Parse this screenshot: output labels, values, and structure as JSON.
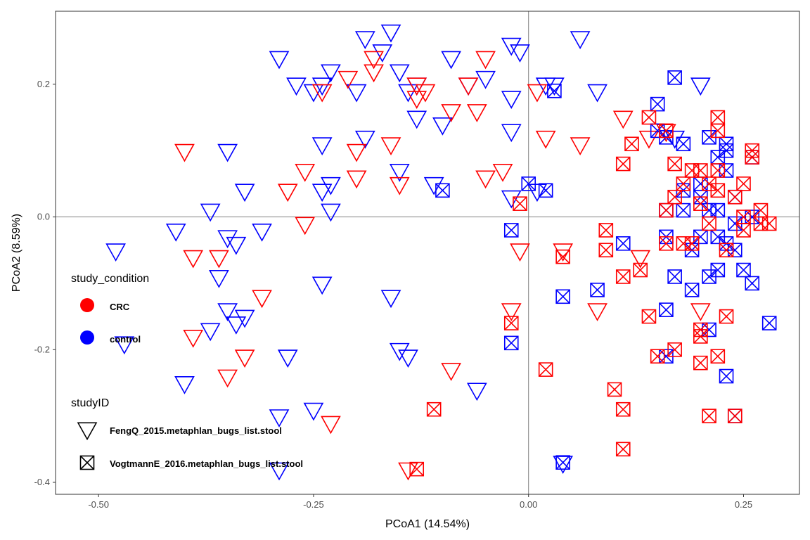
{
  "chart_data": {
    "type": "scatter",
    "xlabel": "PCoA1 (14.54%)",
    "ylabel": "PCoA2 (8.59%)",
    "xlim": [
      -0.55,
      0.315
    ],
    "ylim": [
      -0.418,
      0.31
    ],
    "x_ticks": [
      -0.5,
      -0.25,
      0.0,
      0.25
    ],
    "x_tick_labels": [
      "-0.50",
      "-0.25",
      "0.00",
      "0.25"
    ],
    "y_ticks": [
      -0.4,
      -0.2,
      0.0,
      0.2
    ],
    "y_tick_labels": [
      "-0.4",
      "-0.2",
      "0.0",
      "0.2"
    ],
    "reference_lines": {
      "x": 0,
      "y": 0
    },
    "colors": {
      "CRC": "#ff0000",
      "control": "#0000ff"
    },
    "legend": {
      "placement": "left-inside",
      "color_title": "study_condition",
      "color_entries": [
        "CRC",
        "control"
      ],
      "shape_title": "studyID",
      "shape_entries": [
        {
          "label": "FengQ_2015.metaphlan_bugs_list.stool",
          "shape": "triangle-down"
        },
        {
          "label": "VogtmannE_2016.metaphlan_bugs_list.stool",
          "shape": "square-x"
        }
      ]
    },
    "series": [
      {
        "condition": "control",
        "study": "FengQ_2015.metaphlan_bugs_list.stool",
        "points": [
          [
            -0.48,
            -0.05
          ],
          [
            -0.41,
            -0.02
          ],
          [
            -0.4,
            -0.25
          ],
          [
            -0.37,
            0.01
          ],
          [
            -0.36,
            -0.09
          ],
          [
            -0.37,
            -0.17
          ],
          [
            -0.35,
            -0.14
          ],
          [
            -0.35,
            0.1
          ],
          [
            -0.35,
            -0.03
          ],
          [
            -0.34,
            -0.04
          ],
          [
            -0.34,
            -0.16
          ],
          [
            -0.33,
            0.04
          ],
          [
            -0.33,
            -0.15
          ],
          [
            -0.31,
            -0.02
          ],
          [
            -0.29,
            0.24
          ],
          [
            -0.29,
            -0.3
          ],
          [
            -0.29,
            -0.38
          ],
          [
            -0.27,
            0.2
          ],
          [
            -0.28,
            -0.21
          ],
          [
            -0.25,
            0.19
          ],
          [
            -0.25,
            -0.29
          ],
          [
            -0.24,
            0.11
          ],
          [
            -0.24,
            0.04
          ],
          [
            -0.24,
            -0.1
          ],
          [
            -0.23,
            0.22
          ],
          [
            -0.23,
            0.05
          ],
          [
            -0.23,
            0.01
          ],
          [
            -0.24,
            0.2
          ],
          [
            -0.2,
            0.19
          ],
          [
            -0.19,
            0.27
          ],
          [
            -0.19,
            0.12
          ],
          [
            -0.17,
            0.25
          ],
          [
            -0.16,
            0.28
          ],
          [
            -0.15,
            0.22
          ],
          [
            -0.16,
            -0.12
          ],
          [
            -0.15,
            0.07
          ],
          [
            -0.15,
            -0.2
          ],
          [
            -0.14,
            -0.21
          ],
          [
            -0.14,
            0.19
          ],
          [
            -0.13,
            0.15
          ],
          [
            -0.13,
            0.2
          ],
          [
            -0.11,
            0.05
          ],
          [
            -0.1,
            0.14
          ],
          [
            -0.09,
            0.24
          ],
          [
            -0.07,
            0.2
          ],
          [
            -0.06,
            -0.26
          ],
          [
            -0.05,
            0.21
          ],
          [
            -0.02,
            0.26
          ],
          [
            -0.02,
            0.13
          ],
          [
            -0.01,
            0.25
          ],
          [
            -0.02,
            0.18
          ],
          [
            -0.02,
            0.03
          ],
          [
            0.06,
            0.27
          ],
          [
            0.08,
            0.19
          ],
          [
            0.01,
            0.04
          ],
          [
            0.02,
            0.2
          ],
          [
            0.03,
            0.2
          ],
          [
            -0.47,
            -0.19
          ],
          [
            0.04,
            -0.37
          ],
          [
            0.17,
            0.12
          ],
          [
            0.2,
            0.2
          ]
        ]
      },
      {
        "condition": "CRC",
        "study": "FengQ_2015.metaphlan_bugs_list.stool",
        "points": [
          [
            -0.4,
            0.1
          ],
          [
            -0.39,
            -0.06
          ],
          [
            -0.36,
            -0.06
          ],
          [
            -0.33,
            -0.21
          ],
          [
            -0.31,
            -0.12
          ],
          [
            -0.28,
            0.04
          ],
          [
            -0.26,
            0.07
          ],
          [
            -0.26,
            -0.01
          ],
          [
            -0.24,
            0.19
          ],
          [
            -0.21,
            0.21
          ],
          [
            -0.2,
            0.06
          ],
          [
            -0.2,
            0.1
          ],
          [
            -0.18,
            0.24
          ],
          [
            -0.18,
            0.22
          ],
          [
            -0.16,
            0.11
          ],
          [
            -0.15,
            0.05
          ],
          [
            -0.13,
            0.2
          ],
          [
            -0.13,
            0.18
          ],
          [
            -0.12,
            0.19
          ],
          [
            -0.09,
            -0.23
          ],
          [
            -0.09,
            0.16
          ],
          [
            -0.07,
            0.2
          ],
          [
            -0.06,
            0.16
          ],
          [
            -0.05,
            0.24
          ],
          [
            -0.05,
            0.06
          ],
          [
            -0.03,
            0.07
          ],
          [
            -0.02,
            -0.14
          ],
          [
            -0.01,
            -0.05
          ],
          [
            0.01,
            0.19
          ],
          [
            0.02,
            0.12
          ],
          [
            0.04,
            -0.05
          ],
          [
            0.06,
            0.11
          ],
          [
            0.08,
            -0.14
          ],
          [
            0.11,
            0.15
          ],
          [
            0.13,
            -0.06
          ],
          [
            0.14,
            0.12
          ],
          [
            0.16,
            0.13
          ],
          [
            0.2,
            -0.14
          ],
          [
            -0.39,
            -0.18
          ],
          [
            -0.23,
            -0.31
          ],
          [
            -0.14,
            -0.38
          ],
          [
            -0.35,
            -0.24
          ]
        ]
      },
      {
        "condition": "control",
        "study": "VogtmannE_2016.metaphlan_bugs_list.stool",
        "points": [
          [
            -0.1,
            0.04
          ],
          [
            -0.02,
            -0.02
          ],
          [
            -0.02,
            -0.19
          ],
          [
            0.0,
            0.05
          ],
          [
            0.02,
            0.04
          ],
          [
            0.03,
            0.19
          ],
          [
            0.04,
            -0.12
          ],
          [
            0.08,
            -0.11
          ],
          [
            0.11,
            -0.04
          ],
          [
            0.15,
            0.17
          ],
          [
            0.15,
            0.13
          ],
          [
            0.16,
            0.12
          ],
          [
            0.16,
            0.01
          ],
          [
            0.16,
            -0.03
          ],
          [
            0.16,
            -0.14
          ],
          [
            0.16,
            -0.21
          ],
          [
            0.17,
            0.21
          ],
          [
            0.17,
            -0.09
          ],
          [
            0.18,
            0.04
          ],
          [
            0.18,
            0.11
          ],
          [
            0.18,
            0.01
          ],
          [
            0.19,
            -0.11
          ],
          [
            0.19,
            -0.05
          ],
          [
            0.2,
            0.05
          ],
          [
            0.2,
            0.03
          ],
          [
            0.2,
            -0.03
          ],
          [
            0.21,
            0.12
          ],
          [
            0.21,
            0.01
          ],
          [
            0.21,
            -0.17
          ],
          [
            0.21,
            -0.09
          ],
          [
            0.22,
            0.09
          ],
          [
            0.22,
            0.01
          ],
          [
            0.22,
            -0.03
          ],
          [
            0.22,
            -0.08
          ],
          [
            0.23,
            0.1
          ],
          [
            0.23,
            0.07
          ],
          [
            0.23,
            -0.04
          ],
          [
            0.23,
            -0.24
          ],
          [
            0.23,
            0.11
          ],
          [
            0.24,
            0.03
          ],
          [
            0.24,
            -0.01
          ],
          [
            0.24,
            -0.05
          ],
          [
            0.25,
            -0.08
          ],
          [
            0.26,
            0.09
          ],
          [
            0.26,
            0.0
          ],
          [
            0.26,
            -0.1
          ],
          [
            0.28,
            -0.16
          ],
          [
            0.24,
            -0.3
          ],
          [
            0.04,
            -0.37
          ]
        ]
      },
      {
        "condition": "CRC",
        "study": "VogtmannE_2016.metaphlan_bugs_list.stool",
        "points": [
          [
            -0.11,
            -0.29
          ],
          [
            -0.13,
            -0.38
          ],
          [
            -0.01,
            0.02
          ],
          [
            -0.02,
            -0.16
          ],
          [
            0.02,
            -0.23
          ],
          [
            0.04,
            -0.06
          ],
          [
            0.09,
            -0.02
          ],
          [
            0.09,
            -0.05
          ],
          [
            0.1,
            -0.26
          ],
          [
            0.11,
            -0.29
          ],
          [
            0.11,
            -0.35
          ],
          [
            0.11,
            0.08
          ],
          [
            0.11,
            -0.09
          ],
          [
            0.12,
            0.11
          ],
          [
            0.13,
            -0.08
          ],
          [
            0.14,
            0.15
          ],
          [
            0.14,
            -0.15
          ],
          [
            0.15,
            -0.21
          ],
          [
            0.16,
            0.13
          ],
          [
            0.16,
            0.01
          ],
          [
            0.16,
            -0.04
          ],
          [
            0.17,
            0.08
          ],
          [
            0.17,
            0.03
          ],
          [
            0.17,
            -0.2
          ],
          [
            0.18,
            0.05
          ],
          [
            0.18,
            -0.04
          ],
          [
            0.19,
            0.07
          ],
          [
            0.19,
            -0.04
          ],
          [
            0.2,
            0.07
          ],
          [
            0.2,
            0.02
          ],
          [
            0.2,
            -0.22
          ],
          [
            0.2,
            -0.17
          ],
          [
            0.21,
            -0.3
          ],
          [
            0.21,
            0.05
          ],
          [
            0.21,
            -0.01
          ],
          [
            0.22,
            0.15
          ],
          [
            0.22,
            0.13
          ],
          [
            0.22,
            0.07
          ],
          [
            0.22,
            0.04
          ],
          [
            0.22,
            -0.21
          ],
          [
            0.23,
            -0.15
          ],
          [
            0.23,
            -0.05
          ],
          [
            0.24,
            0.03
          ],
          [
            0.25,
            0.05
          ],
          [
            0.25,
            0.0
          ],
          [
            0.25,
            -0.02
          ],
          [
            0.26,
            0.1
          ],
          [
            0.26,
            0.09
          ],
          [
            0.27,
            0.01
          ],
          [
            0.27,
            -0.01
          ],
          [
            0.28,
            -0.01
          ],
          [
            0.24,
            -0.3
          ],
          [
            0.2,
            -0.18
          ]
        ]
      }
    ]
  }
}
